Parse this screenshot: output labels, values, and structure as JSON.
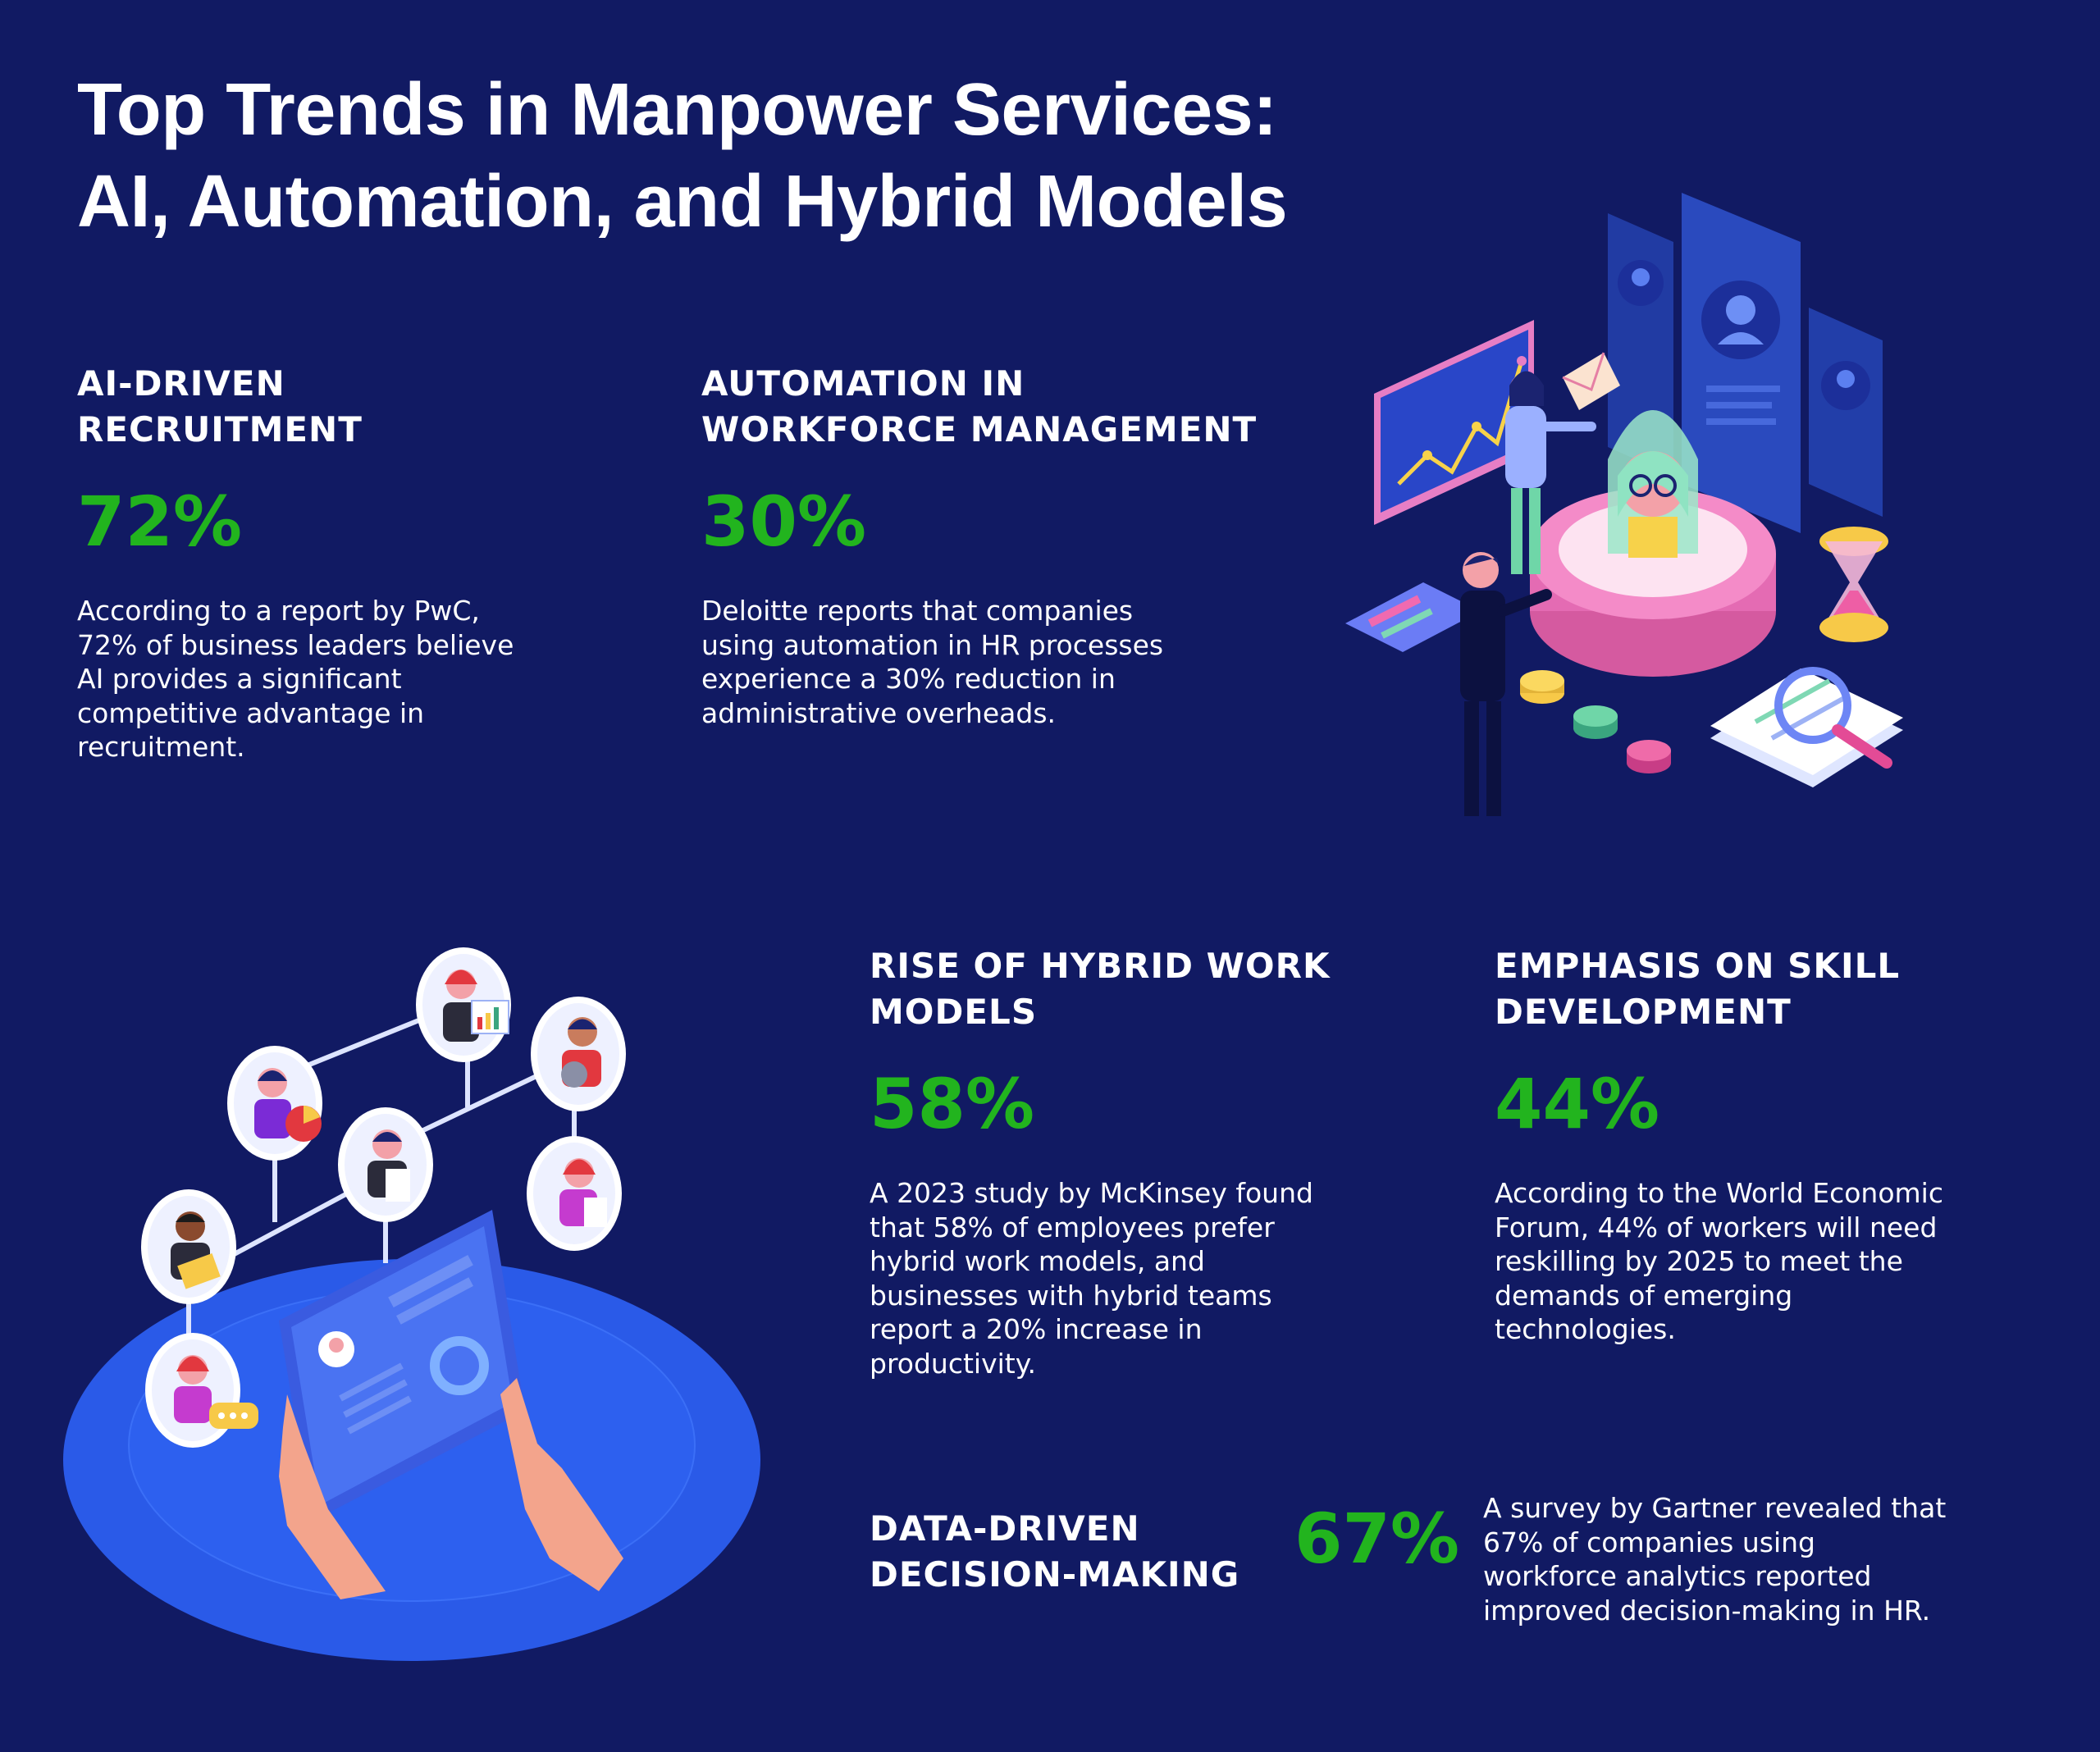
{
  "title": {
    "line1": "Top Trends in Manpower Services:",
    "line2": "AI, Automation, and Hybrid Models"
  },
  "trends": [
    {
      "heading": [
        "AI-DRIVEN",
        "RECRUITMENT"
      ],
      "stat": "72%",
      "body": [
        "According to a report by PwC,",
        "72% of business leaders believe",
        "AI provides a significant",
        "competitive advantage in",
        "recruitment."
      ]
    },
    {
      "heading": [
        "AUTOMATION IN",
        "WORKFORCE MANAGEMENT"
      ],
      "stat": "30%",
      "body": [
        "Deloitte reports that companies",
        "using automation in HR processes",
        "experience a 30% reduction in",
        "administrative overheads."
      ]
    },
    {
      "heading": [
        "RISE OF HYBRID WORK",
        "MODELS"
      ],
      "stat": "58%",
      "body": [
        "A 2023 study by McKinsey found",
        "that 58% of employees prefer",
        "hybrid work models, and",
        "businesses with hybrid teams",
        "report a 20% increase in",
        "productivity."
      ]
    },
    {
      "heading": [
        "EMPHASIS ON SKILL",
        "DEVELOPMENT"
      ],
      "stat": "44%",
      "body": [
        "According to the World Economic",
        "Forum, 44% of workers will need",
        "reskilling by 2025 to meet the",
        "demands of emerging",
        "technologies."
      ]
    },
    {
      "heading": [
        "DATA-DRIVEN",
        "DECISION-MAKING"
      ],
      "stat": "67%",
      "body": [
        "A survey by Gartner revealed that",
        "67% of companies using",
        "workforce analytics reported",
        "improved decision-making in HR."
      ]
    }
  ],
  "colors": {
    "background": "#111a63",
    "stat_green": "#22b41e",
    "text": "#ffffff"
  },
  "illustrations": {
    "top_right": "ai-recruitment-illustration",
    "bottom_left": "hybrid-team-network-illustration"
  }
}
